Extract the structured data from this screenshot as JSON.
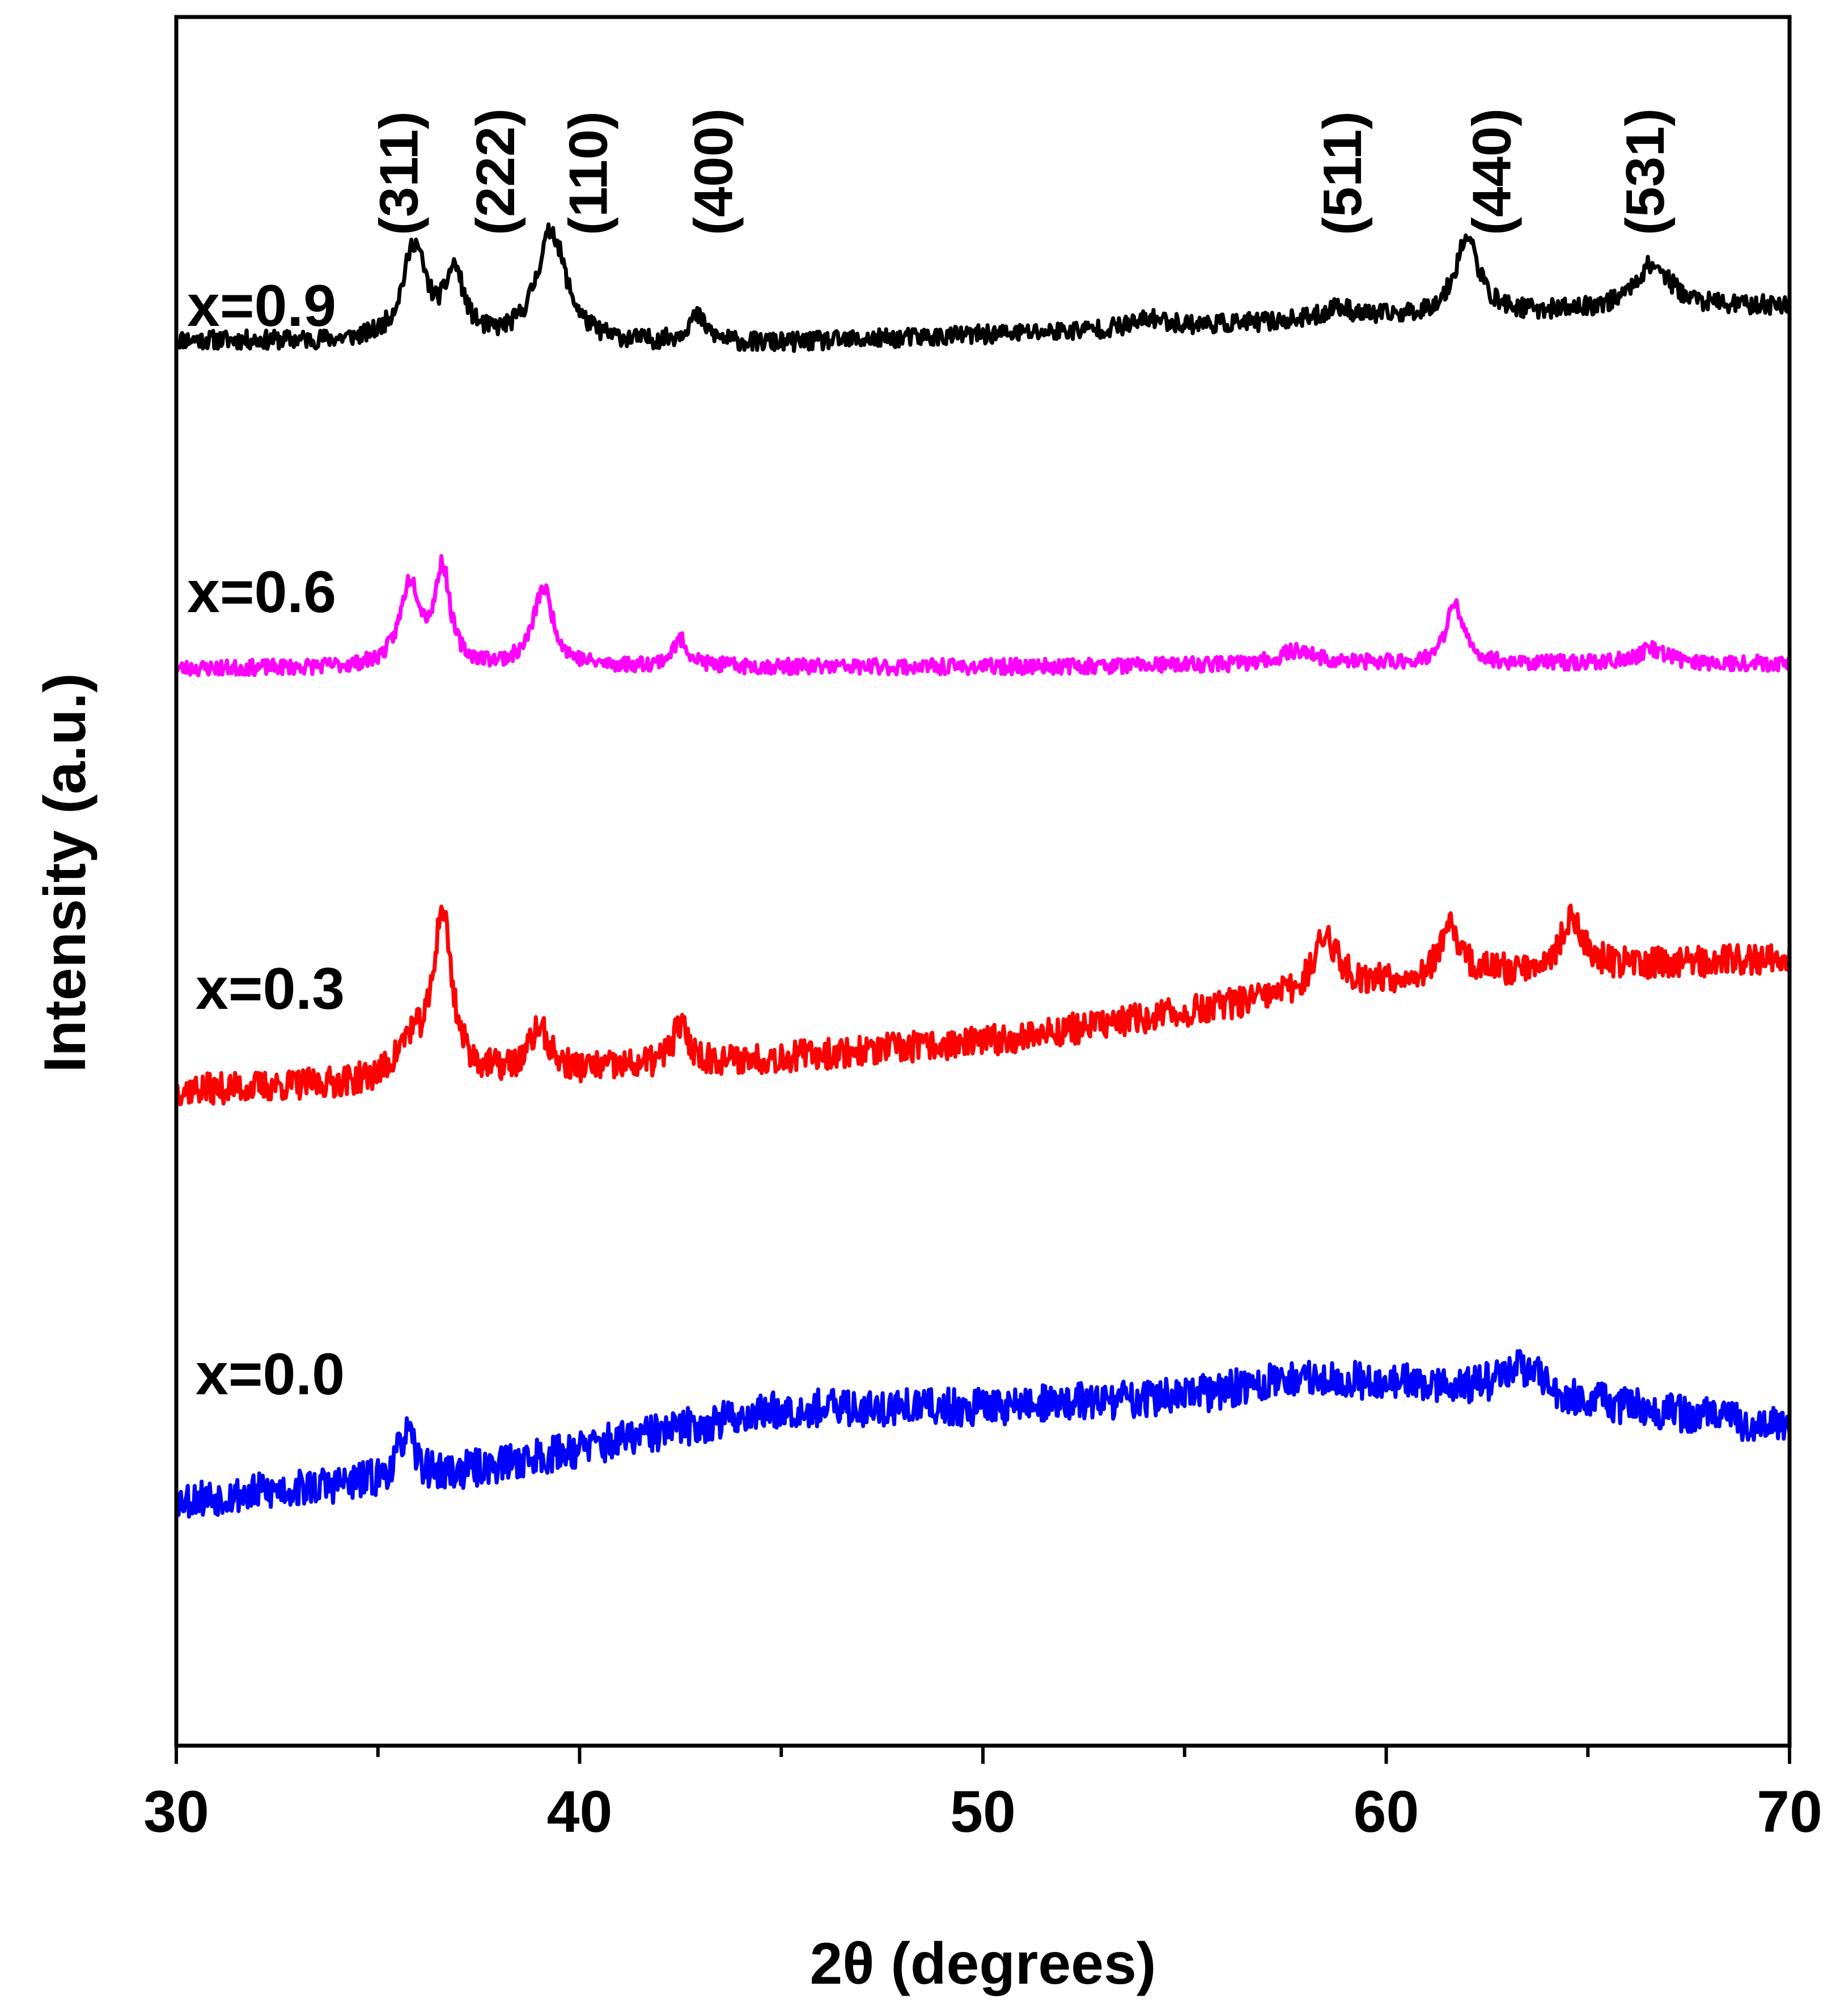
{
  "chart_data": {
    "type": "line",
    "title": "",
    "xlabel": "2θ (degrees)",
    "ylabel": "Intensity (a.u.)",
    "xlim": [
      30,
      70
    ],
    "ylim": [
      0,
      100
    ],
    "x_ticks": [
      30,
      40,
      50,
      60,
      70
    ],
    "x_tick_labels": [
      "30",
      "40",
      "50",
      "60",
      "70"
    ],
    "y_tick_labels": [],
    "grid": false,
    "legend": "inline labels at left of each trace",
    "peak_labels": [
      {
        "label": "(311)",
        "x": 35.5
      },
      {
        "label": "(222)",
        "x": 37.9
      },
      {
        "label": "(110)",
        "x": 40.2
      },
      {
        "label": "(400)",
        "x": 43.3
      },
      {
        "label": "(511)",
        "x": 58.9
      },
      {
        "label": "(440)",
        "x": 62.6
      },
      {
        "label": "(531)",
        "x": 66.4
      }
    ],
    "series": [
      {
        "name": "x=0.9",
        "color": "#000000",
        "noise": 0.55,
        "seed": 11,
        "baseline": [
          [
            30,
            81.3
          ],
          [
            40,
            81.0
          ],
          [
            45,
            81.1
          ],
          [
            50,
            81.6
          ],
          [
            55,
            82.1
          ],
          [
            60,
            82.6
          ],
          [
            70,
            83.3
          ]
        ],
        "peaks": [
          {
            "x": 35.9,
            "h": 5.5,
            "w": 0.35
          },
          {
            "x": 36.9,
            "h": 3.8,
            "w": 0.28
          },
          {
            "x": 39.3,
            "h": 6.5,
            "w": 0.45
          },
          {
            "x": 42.9,
            "h": 1.5,
            "w": 0.3
          },
          {
            "x": 54.2,
            "h": 0.5,
            "w": 0.5
          },
          {
            "x": 58.8,
            "h": 0.7,
            "w": 0.4
          },
          {
            "x": 62.0,
            "h": 4.5,
            "w": 0.35
          },
          {
            "x": 66.6,
            "h": 2.6,
            "w": 0.55
          }
        ]
      },
      {
        "name": "x=0.6",
        "color": "#ff00ff",
        "noise": 0.45,
        "seed": 23,
        "baseline": [
          [
            30,
            62.3
          ],
          [
            40,
            62.4
          ],
          [
            50,
            62.4
          ],
          [
            60,
            62.6
          ],
          [
            70,
            62.6
          ]
        ],
        "peaks": [
          {
            "x": 35.8,
            "h": 4.8,
            "w": 0.3
          },
          {
            "x": 36.6,
            "h": 5.5,
            "w": 0.22
          },
          {
            "x": 39.1,
            "h": 4.5,
            "w": 0.3
          },
          {
            "x": 42.5,
            "h": 1.5,
            "w": 0.25
          },
          {
            "x": 57.8,
            "h": 0.8,
            "w": 0.5
          },
          {
            "x": 61.7,
            "h": 3.5,
            "w": 0.25
          },
          {
            "x": 66.6,
            "h": 0.8,
            "w": 0.45
          }
        ]
      },
      {
        "name": "x=0.3",
        "color": "#ff0000",
        "noise": 0.9,
        "seed": 37,
        "baseline": [
          [
            30,
            37.9
          ],
          [
            35,
            38.3
          ],
          [
            40,
            39.0
          ],
          [
            45,
            39.8
          ],
          [
            50,
            40.7
          ],
          [
            55,
            42.4
          ],
          [
            60,
            44.2
          ],
          [
            65,
            45.0
          ],
          [
            70,
            45.6
          ]
        ],
        "peaks": [
          {
            "x": 36.6,
            "h": 9.5,
            "w": 0.28
          },
          {
            "x": 35.8,
            "h": 2.0,
            "w": 0.4
          },
          {
            "x": 39.0,
            "h": 2.5,
            "w": 0.3
          },
          {
            "x": 42.5,
            "h": 2.2,
            "w": 0.25
          },
          {
            "x": 58.5,
            "h": 3.2,
            "w": 0.35
          },
          {
            "x": 61.6,
            "h": 2.8,
            "w": 0.3
          },
          {
            "x": 64.6,
            "h": 2.8,
            "w": 0.35
          }
        ]
      },
      {
        "name": "x=0.0",
        "color": "#0000ff",
        "noise": 1.1,
        "seed": 53,
        "baseline": [
          [
            30,
            14.2
          ],
          [
            35,
            15.3
          ],
          [
            37,
            15.8
          ],
          [
            40,
            17.2
          ],
          [
            45,
            19.5
          ],
          [
            50,
            19.6
          ],
          [
            55,
            20.2
          ],
          [
            58,
            21.3
          ],
          [
            62,
            20.7
          ],
          [
            70,
            18.4
          ]
        ],
        "peaks": [
          {
            "x": 35.7,
            "h": 2.6,
            "w": 0.25
          },
          {
            "x": 63.4,
            "h": 1.6,
            "w": 0.6
          }
        ]
      }
    ]
  }
}
